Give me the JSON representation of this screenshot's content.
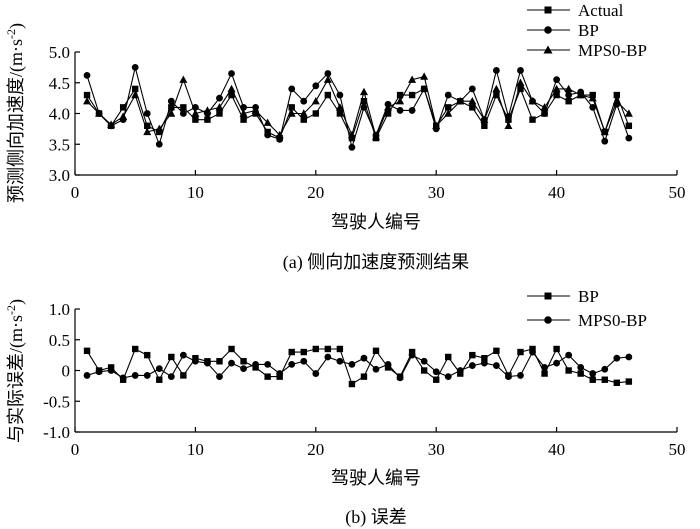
{
  "chart_data": [
    {
      "type": "line",
      "title": "",
      "caption": "(a) 侧向加速度预测结果",
      "xlabel": "驾驶人编号",
      "ylabel": "预测侧向加速度/(m·s⁻²)",
      "ylabel_main": "预测侧向加速度/(m·s",
      "ylabel_sup": "-2",
      "ylabel_close": ")",
      "xlim": [
        0,
        50
      ],
      "ylim": [
        3.0,
        5.0
      ],
      "xticks": [
        0,
        10,
        20,
        30,
        40,
        50
      ],
      "yticks": [
        3.0,
        3.5,
        4.0,
        4.5,
        5.0
      ],
      "xtick_labels": [
        "0",
        "10",
        "20",
        "30",
        "40",
        "50"
      ],
      "ytick_labels": [
        "3.0",
        "3.5",
        "4.0",
        "4.5",
        "5.0"
      ],
      "legend_position": "top-right",
      "x": [
        1,
        2,
        3,
        4,
        5,
        6,
        7,
        8,
        9,
        10,
        11,
        12,
        13,
        14,
        15,
        16,
        17,
        18,
        19,
        20,
        21,
        22,
        23,
        24,
        25,
        26,
        27,
        28,
        29,
        30,
        31,
        32,
        33,
        34,
        35,
        36,
        37,
        38,
        39,
        40,
        41,
        42,
        43,
        44,
        45,
        46
      ],
      "series": [
        {
          "name": "Actual",
          "marker": "square",
          "values": [
            4.3,
            4.0,
            3.8,
            4.1,
            4.4,
            3.8,
            3.7,
            4.1,
            4.1,
            3.9,
            3.9,
            4.0,
            4.3,
            3.9,
            4.0,
            3.7,
            3.6,
            4.1,
            3.9,
            4.0,
            4.3,
            4.0,
            3.6,
            4.2,
            3.6,
            4.0,
            4.3,
            4.3,
            4.4,
            3.8,
            4.1,
            4.2,
            4.1,
            3.8,
            4.3,
            3.9,
            4.4,
            3.9,
            4.0,
            4.3,
            4.2,
            4.3,
            4.3,
            3.7,
            4.3,
            3.8
          ]
        },
        {
          "name": "BP",
          "marker": "circle",
          "values": [
            4.62,
            4.0,
            3.8,
            3.9,
            4.75,
            4.0,
            3.5,
            4.2,
            4.0,
            4.1,
            4.0,
            4.25,
            4.65,
            4.1,
            4.1,
            3.65,
            3.58,
            4.4,
            4.2,
            4.45,
            4.65,
            4.3,
            3.45,
            4.1,
            3.65,
            4.15,
            4.05,
            4.05,
            4.4,
            3.75,
            4.3,
            4.2,
            4.4,
            3.9,
            4.7,
            3.95,
            4.7,
            4.2,
            4.0,
            4.55,
            4.3,
            4.35,
            4.1,
            3.55,
            4.15,
            3.6
          ]
        },
        {
          "name": "MPS0-BP",
          "marker": "triangle",
          "values": [
            4.2,
            4.0,
            3.82,
            3.95,
            4.3,
            3.7,
            3.75,
            4.0,
            4.55,
            4.0,
            4.05,
            4.1,
            4.4,
            4.0,
            4.05,
            3.85,
            3.65,
            4.0,
            4.0,
            4.2,
            4.55,
            4.1,
            3.65,
            4.35,
            3.62,
            4.1,
            4.2,
            4.55,
            4.6,
            3.8,
            4.0,
            4.2,
            4.2,
            3.9,
            4.4,
            3.8,
            4.5,
            4.2,
            4.1,
            4.4,
            4.4,
            4.3,
            4.25,
            3.7,
            4.2,
            4.0
          ]
        }
      ]
    },
    {
      "type": "line",
      "title": "",
      "caption": "(b) 误差",
      "xlabel": "驾驶人编号",
      "ylabel": "与实际误差/(m·s⁻²)",
      "ylabel_main": "与实际误差/(m·s",
      "ylabel_sup": "-2",
      "ylabel_close": ")",
      "xlim": [
        0,
        50
      ],
      "ylim": [
        -1.0,
        1.0
      ],
      "xticks": [
        0,
        10,
        20,
        30,
        40,
        50
      ],
      "yticks": [
        -1.0,
        -0.5,
        0,
        0.5,
        1.0
      ],
      "xtick_labels": [
        "0",
        "10",
        "20",
        "30",
        "40",
        "50"
      ],
      "ytick_labels": [
        "-1.0",
        "-0.5",
        "0",
        "0.5",
        "1.0"
      ],
      "legend_position": "top-right",
      "x": [
        1,
        2,
        3,
        4,
        5,
        6,
        7,
        8,
        9,
        10,
        11,
        12,
        13,
        14,
        15,
        16,
        17,
        18,
        19,
        20,
        21,
        22,
        23,
        24,
        25,
        26,
        27,
        28,
        29,
        30,
        31,
        32,
        33,
        34,
        35,
        36,
        37,
        38,
        39,
        40,
        41,
        42,
        43,
        44,
        45,
        46
      ],
      "series": [
        {
          "name": "BP",
          "marker": "square",
          "values": [
            0.32,
            0.0,
            0.05,
            -0.15,
            0.35,
            0.25,
            -0.15,
            0.22,
            -0.08,
            0.2,
            0.15,
            0.15,
            0.35,
            0.15,
            0.05,
            -0.1,
            -0.1,
            0.3,
            0.3,
            0.35,
            0.35,
            0.35,
            -0.22,
            -0.1,
            0.32,
            0.05,
            -0.1,
            0.3,
            0.0,
            -0.15,
            0.22,
            -0.05,
            0.25,
            0.2,
            0.32,
            -0.08,
            0.3,
            0.35,
            -0.05,
            0.35,
            0.0,
            -0.05,
            -0.15,
            -0.15,
            -0.2,
            -0.18
          ]
        },
        {
          "name": "MPS0-BP",
          "marker": "circle",
          "values": [
            -0.08,
            -0.02,
            0.0,
            -0.12,
            -0.08,
            -0.08,
            0.03,
            -0.1,
            0.25,
            0.15,
            0.12,
            -0.1,
            0.12,
            0.03,
            0.1,
            0.1,
            -0.05,
            0.1,
            0.15,
            -0.05,
            0.22,
            0.15,
            0.1,
            0.2,
            0.02,
            0.1,
            -0.12,
            0.25,
            0.15,
            -0.02,
            -0.1,
            0.0,
            0.08,
            0.12,
            0.08,
            -0.1,
            -0.08,
            0.3,
            0.05,
            0.12,
            0.25,
            0.05,
            -0.05,
            0.02,
            0.2,
            0.22
          ]
        }
      ]
    }
  ]
}
